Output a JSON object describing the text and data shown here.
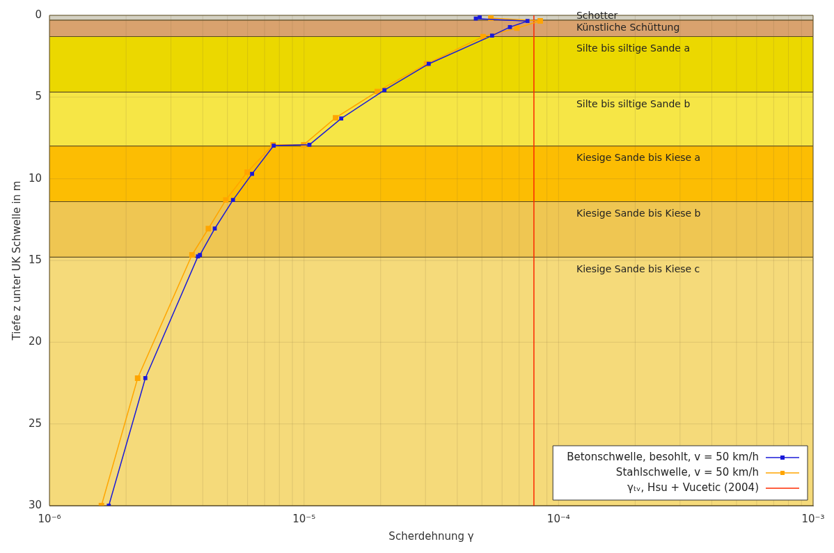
{
  "chart_data": {
    "type": "line",
    "xlabel": "Scherdehnung γ",
    "ylabel": "Tiefe z unter UK Schwelle in m",
    "log": "x",
    "xlim": [
      1e-06,
      0.001
    ],
    "xticks": [
      {
        "value": 1e-06,
        "label": "10⁻⁶"
      },
      {
        "value": 2e-06,
        "label": null
      },
      {
        "value": 3e-06,
        "label": null
      },
      {
        "value": 4e-06,
        "label": null
      },
      {
        "value": 5e-06,
        "label": null
      },
      {
        "value": 6e-06,
        "label": null
      },
      {
        "value": 7e-06,
        "label": null
      },
      {
        "value": 8e-06,
        "label": null
      },
      {
        "value": 9e-06,
        "label": null
      },
      {
        "value": 1e-05,
        "label": "10⁻⁵"
      },
      {
        "value": 2e-05,
        "label": null
      },
      {
        "value": 3e-05,
        "label": null
      },
      {
        "value": 4e-05,
        "label": null
      },
      {
        "value": 5e-05,
        "label": null
      },
      {
        "value": 6e-05,
        "label": null
      },
      {
        "value": 7e-05,
        "label": null
      },
      {
        "value": 8e-05,
        "label": null
      },
      {
        "value": 9e-05,
        "label": null
      },
      {
        "value": 0.0001,
        "label": "10⁻⁴"
      },
      {
        "value": 0.0002,
        "label": null
      },
      {
        "value": 0.0003,
        "label": null
      },
      {
        "value": 0.0004,
        "label": null
      },
      {
        "value": 0.0005,
        "label": null
      },
      {
        "value": 0.0006,
        "label": null
      },
      {
        "value": 0.0007,
        "label": null
      },
      {
        "value": 0.0008,
        "label": null
      },
      {
        "value": 0.0009,
        "label": null
      },
      {
        "value": 0.001,
        "label": "10⁻³"
      }
    ],
    "ylim": [
      30,
      0
    ],
    "yticks": [
      0,
      5,
      10,
      15,
      20,
      25,
      30
    ],
    "grid": true,
    "legend": "bottom right",
    "marker": "square",
    "line_style": "solid",
    "bands": [
      {
        "axis": "y",
        "from": 0,
        "to": 0.3,
        "label": "Schotter",
        "color": "#d3d0c2"
      },
      {
        "axis": "y",
        "from": 0.3,
        "to": 1.3,
        "label": "Künstliche Schüttung",
        "color": "#d9a26e"
      },
      {
        "axis": "y",
        "from": 1.3,
        "to": 4.7,
        "label": "Silte bis siltige Sande a",
        "color": "#ebd800"
      },
      {
        "axis": "y",
        "from": 4.7,
        "to": 8.0,
        "label": "Silte bis siltige Sande b",
        "color": "#f6e646"
      },
      {
        "axis": "y",
        "from": 8.0,
        "to": 11.4,
        "label": "Kiesige Sande bis Kiese a",
        "color": "#fcbd03"
      },
      {
        "axis": "y",
        "from": 11.4,
        "to": 14.8,
        "label": "Kiesige Sande bis Kiese b",
        "color": "#efc652"
      },
      {
        "axis": "y",
        "from": 14.8,
        "to": 30,
        "label": "Kiesige Sande bis Kiese c",
        "color": "#f5da7a"
      }
    ],
    "series": [
      {
        "name": "Betonschwelle, besohlt, v = 50 km/h",
        "color": "#1a1ad8",
        "x": [
          4.9e-05,
          4.73e-05,
          7.55e-05,
          6.44e-05,
          5.48e-05,
          3.09e-05,
          2.07e-05,
          1.4e-05,
          1.05e-05,
          7.6e-06,
          6.25e-06,
          5.26e-06,
          4.46e-06,
          3.9e-06,
          3.83e-06,
          2.38e-06,
          1.71e-06
        ],
        "values": [
          0.1,
          0.2,
          0.35,
          0.72,
          1.24,
          2.97,
          4.58,
          6.31,
          7.92,
          7.97,
          9.7,
          11.3,
          13.05,
          14.66,
          14.75,
          22.2,
          30
        ]
      },
      {
        "name": "Stahlschwelle, v = 50 km/h",
        "color": "#ffa500",
        "x": [
          5.42e-05,
          8.47e-05,
          6.86e-05,
          5.05e-05,
          3.03e-05,
          1.94e-05,
          1.33e-05,
          9.97e-06,
          7.56e-06,
          5.98e-06,
          4.93e-06,
          4.21e-06,
          3.63e-06,
          2.22e-06,
          1.6e-06
        ],
        "values": [
          0.17,
          0.34,
          0.78,
          1.31,
          2.97,
          4.66,
          6.27,
          7.92,
          7.92,
          9.6,
          11.3,
          13.05,
          14.66,
          22.2,
          30
        ]
      },
      {
        "name": "γₜᵥ, Hsu + Vucetic (2004)",
        "color": "#ff2a00",
        "marker": "none",
        "x": [
          8e-05,
          8e-05
        ],
        "values": [
          0,
          30
        ]
      }
    ]
  }
}
